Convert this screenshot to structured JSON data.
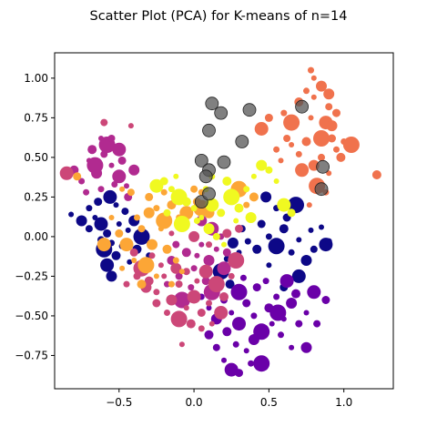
{
  "chart_data": {
    "type": "scatter",
    "title": "Scatter Plot (PCA) for K-means of n=14",
    "xlabel": "",
    "ylabel": "",
    "xlim": [
      -0.93,
      1.33
    ],
    "ylim": [
      -0.96,
      1.16
    ],
    "xticks": [
      -0.5,
      0.0,
      0.5,
      1.0
    ],
    "xtick_labels": [
      "−0.5",
      "0.0",
      "0.5",
      "1.0"
    ],
    "yticks": [
      -0.75,
      -0.5,
      -0.25,
      0.0,
      0.25,
      0.5,
      0.75,
      1.0
    ],
    "ytick_labels": [
      "−0.75",
      "−0.50",
      "−0.25",
      "0.00",
      "0.25",
      "0.50",
      "0.75",
      "1.00"
    ],
    "grid": false,
    "legend": "none",
    "clusters": [
      {
        "color": "#0d0887",
        "points": [
          [
            -0.82,
            0.14
          ],
          [
            -0.75,
            0.1
          ],
          [
            -0.7,
            0.05
          ],
          [
            -0.66,
            0.12
          ],
          [
            -0.62,
            0.08
          ],
          [
            -0.58,
            0.02
          ],
          [
            -0.55,
            -0.04
          ],
          [
            -0.6,
            -0.08
          ],
          [
            -0.52,
            -0.12
          ],
          [
            -0.48,
            -0.06
          ],
          [
            -0.44,
            0.04
          ],
          [
            -0.4,
            0.1
          ],
          [
            -0.46,
            0.16
          ],
          [
            -0.52,
            0.2
          ],
          [
            -0.56,
            0.25
          ],
          [
            -0.64,
            0.22
          ],
          [
            -0.7,
            0.18
          ],
          [
            -0.35,
            0.0
          ],
          [
            -0.38,
            -0.08
          ],
          [
            -0.3,
            -0.12
          ],
          [
            -0.43,
            -0.16
          ],
          [
            -0.55,
            -0.25
          ],
          [
            -0.62,
            -0.02
          ],
          [
            -0.5,
            0.08
          ],
          [
            -0.58,
            -0.18
          ],
          [
            0.45,
            0.08
          ],
          [
            0.5,
            0.0
          ],
          [
            0.55,
            -0.06
          ],
          [
            0.6,
            0.05
          ],
          [
            0.65,
            -0.1
          ],
          [
            0.7,
            -0.02
          ],
          [
            0.75,
            -0.15
          ],
          [
            0.8,
            -0.08
          ],
          [
            0.85,
            0.06
          ],
          [
            0.88,
            -0.05
          ],
          [
            0.62,
            0.12
          ],
          [
            0.55,
            0.18
          ],
          [
            0.68,
            0.2
          ],
          [
            0.42,
            -0.08
          ],
          [
            0.36,
            -0.03
          ],
          [
            0.3,
            -0.1
          ],
          [
            0.26,
            -0.04
          ],
          [
            0.32,
            0.05
          ],
          [
            0.5,
            -0.18
          ],
          [
            0.7,
            -0.25
          ],
          [
            0.6,
            -0.32
          ],
          [
            0.22,
            -0.14
          ],
          [
            0.18,
            -0.22
          ],
          [
            0.24,
            -0.3
          ],
          [
            0.9,
            -0.03
          ],
          [
            0.78,
            0.04
          ],
          [
            0.48,
            0.25
          ]
        ]
      },
      {
        "color": "#6a00a8",
        "points": [
          [
            0.05,
            -0.38
          ],
          [
            0.1,
            -0.45
          ],
          [
            0.15,
            -0.52
          ],
          [
            0.2,
            -0.4
          ],
          [
            0.25,
            -0.48
          ],
          [
            0.3,
            -0.55
          ],
          [
            0.35,
            -0.42
          ],
          [
            0.4,
            -0.5
          ],
          [
            0.45,
            -0.6
          ],
          [
            0.5,
            -0.45
          ],
          [
            0.55,
            -0.38
          ],
          [
            0.6,
            -0.52
          ],
          [
            0.65,
            -0.42
          ],
          [
            0.7,
            -0.55
          ],
          [
            0.75,
            -0.48
          ],
          [
            0.8,
            -0.35
          ],
          [
            0.42,
            -0.32
          ],
          [
            0.48,
            -0.28
          ],
          [
            0.3,
            -0.35
          ],
          [
            0.22,
            -0.6
          ],
          [
            0.28,
            -0.68
          ],
          [
            0.35,
            -0.72
          ],
          [
            0.4,
            -0.65
          ],
          [
            0.15,
            -0.7
          ],
          [
            0.2,
            -0.78
          ],
          [
            0.25,
            -0.84
          ],
          [
            0.3,
            -0.86
          ],
          [
            0.38,
            -0.8
          ],
          [
            0.45,
            -0.8
          ],
          [
            0.1,
            -0.62
          ],
          [
            0.58,
            -0.62
          ],
          [
            0.65,
            -0.7
          ],
          [
            0.75,
            -0.7
          ],
          [
            0.82,
            -0.55
          ],
          [
            0.52,
            -0.55
          ],
          [
            0.62,
            -0.28
          ],
          [
            0.88,
            -0.4
          ],
          [
            0.33,
            -0.26
          ],
          [
            0.56,
            -0.48
          ],
          [
            0.68,
            -0.36
          ]
        ]
      },
      {
        "color": "#b12a90",
        "points": [
          [
            -0.8,
            0.42
          ],
          [
            -0.75,
            0.35
          ],
          [
            -0.7,
            0.48
          ],
          [
            -0.65,
            0.4
          ],
          [
            -0.6,
            0.52
          ],
          [
            -0.55,
            0.45
          ],
          [
            -0.5,
            0.38
          ],
          [
            -0.48,
            0.48
          ],
          [
            -0.62,
            0.3
          ],
          [
            -0.58,
            0.58
          ],
          [
            -0.68,
            0.55
          ],
          [
            -0.72,
            0.28
          ],
          [
            -0.45,
            0.32
          ],
          [
            -0.4,
            0.42
          ],
          [
            -0.55,
            0.62
          ],
          [
            -0.62,
            0.62
          ],
          [
            -0.5,
            0.55
          ],
          [
            -0.44,
            0.25
          ],
          [
            -0.53,
            0.33
          ],
          [
            -0.66,
            0.45
          ],
          [
            -0.05,
            -0.1
          ],
          [
            0.0,
            -0.2
          ],
          [
            0.05,
            -0.05
          ],
          [
            0.1,
            -0.15
          ],
          [
            -0.1,
            -0.25
          ],
          [
            0.15,
            -0.08
          ],
          [
            0.2,
            -0.2
          ],
          [
            0.08,
            -0.28
          ],
          [
            -0.02,
            -0.32
          ],
          [
            0.12,
            -0.35
          ],
          [
            -0.15,
            -0.15
          ],
          [
            0.18,
            0.0
          ],
          [
            -0.08,
            0.05
          ],
          [
            0.05,
            0.1
          ],
          [
            -0.12,
            -0.05
          ],
          [
            0.02,
            -0.12
          ],
          [
            0.12,
            0.05
          ],
          [
            0.22,
            -0.1
          ],
          [
            -0.18,
            -0.3
          ],
          [
            -0.08,
            -0.4
          ]
        ]
      },
      {
        "color": "#cc4778",
        "points": [
          [
            -0.35,
            -0.2
          ],
          [
            -0.3,
            -0.28
          ],
          [
            -0.25,
            -0.35
          ],
          [
            -0.2,
            -0.25
          ],
          [
            -0.15,
            -0.4
          ],
          [
            -0.1,
            -0.3
          ],
          [
            -0.05,
            -0.45
          ],
          [
            0.0,
            -0.38
          ],
          [
            0.05,
            -0.48
          ],
          [
            0.1,
            -0.42
          ],
          [
            0.15,
            -0.3
          ],
          [
            0.2,
            -0.38
          ],
          [
            -0.28,
            -0.12
          ],
          [
            -0.22,
            -0.18
          ],
          [
            -0.12,
            -0.2
          ],
          [
            -0.05,
            -0.22
          ],
          [
            0.02,
            -0.28
          ],
          [
            0.08,
            -0.22
          ],
          [
            -0.25,
            -0.42
          ],
          [
            -0.18,
            -0.48
          ],
          [
            -0.1,
            -0.52
          ],
          [
            -0.02,
            -0.55
          ],
          [
            0.05,
            -0.58
          ],
          [
            0.12,
            -0.55
          ],
          [
            -0.32,
            -0.32
          ],
          [
            -0.38,
            -0.25
          ],
          [
            -0.08,
            -0.68
          ],
          [
            0.18,
            -0.48
          ],
          [
            -0.4,
            -0.1
          ],
          [
            0.25,
            -0.25
          ],
          [
            0.28,
            -0.15
          ],
          [
            0.22,
            0.02
          ],
          [
            0.1,
            -0.05
          ],
          [
            -0.15,
            0.02
          ],
          [
            0.0,
            0.0
          ],
          [
            -0.6,
            0.72
          ],
          [
            -0.42,
            0.7
          ],
          [
            -0.85,
            0.4
          ],
          [
            0.3,
            0.05
          ],
          [
            -0.45,
            -0.3
          ]
        ]
      },
      {
        "color": "#f0724d",
        "points": [
          [
            0.6,
            0.78
          ],
          [
            0.65,
            0.72
          ],
          [
            0.7,
            0.85
          ],
          [
            0.75,
            0.92
          ],
          [
            0.8,
            0.88
          ],
          [
            0.85,
            0.95
          ],
          [
            0.9,
            0.82
          ],
          [
            0.78,
            0.75
          ],
          [
            0.88,
            0.72
          ],
          [
            0.92,
            0.62
          ],
          [
            0.95,
            0.55
          ],
          [
            0.85,
            0.62
          ],
          [
            0.75,
            0.6
          ],
          [
            0.7,
            0.52
          ],
          [
            0.65,
            0.58
          ],
          [
            0.8,
            0.45
          ],
          [
            0.85,
            0.5
          ],
          [
            0.9,
            0.4
          ],
          [
            0.72,
            0.42
          ],
          [
            0.95,
            0.78
          ],
          [
            1.0,
            0.6
          ],
          [
            1.05,
            0.58
          ],
          [
            1.22,
            0.39
          ],
          [
            0.78,
            1.05
          ],
          [
            0.8,
            1.0
          ],
          [
            0.9,
            0.9
          ],
          [
            0.62,
            0.62
          ],
          [
            0.58,
            0.48
          ],
          [
            0.45,
            0.68
          ],
          [
            0.5,
            0.75
          ],
          [
            0.55,
            0.55
          ],
          [
            0.82,
            0.32
          ],
          [
            0.98,
            0.5
          ],
          [
            0.88,
            0.28
          ],
          [
            0.77,
            0.2
          ],
          [
            0.92,
            0.7
          ]
        ]
      },
      {
        "color": "#fca636",
        "points": [
          [
            -0.3,
            0.25
          ],
          [
            -0.25,
            0.18
          ],
          [
            -0.2,
            0.1
          ],
          [
            -0.15,
            0.2
          ],
          [
            -0.1,
            0.12
          ],
          [
            -0.22,
            0.05
          ],
          [
            -0.28,
            -0.05
          ],
          [
            -0.35,
            0.05
          ],
          [
            -0.4,
            -0.15
          ],
          [
            -0.45,
            -0.05
          ],
          [
            -0.5,
            0.02
          ],
          [
            -0.38,
            0.12
          ],
          [
            -0.32,
            -0.18
          ],
          [
            -0.18,
            -0.08
          ],
          [
            -0.12,
            -0.15
          ],
          [
            -0.25,
            -0.25
          ],
          [
            -0.3,
            0.15
          ],
          [
            -0.42,
            0.28
          ],
          [
            -0.48,
            0.3
          ],
          [
            -0.05,
            0.15
          ],
          [
            0.02,
            0.22
          ],
          [
            -0.2,
            0.28
          ],
          [
            0.05,
            0.18
          ],
          [
            -0.35,
            -0.3
          ],
          [
            -0.15,
            -0.3
          ],
          [
            -0.08,
            -0.22
          ],
          [
            0.1,
            0.15
          ],
          [
            0.0,
            0.3
          ],
          [
            -0.55,
            0.12
          ],
          [
            -0.6,
            -0.05
          ],
          [
            -0.78,
            0.38
          ],
          [
            0.05,
            0.28
          ],
          [
            0.3,
            0.3
          ],
          [
            0.4,
            0.25
          ],
          [
            0.35,
            0.2
          ],
          [
            -0.48,
            -0.2
          ]
        ]
      },
      {
        "color": "#f0f921",
        "points": [
          [
            -0.25,
            0.32
          ],
          [
            -0.2,
            0.35
          ],
          [
            -0.15,
            0.3
          ],
          [
            -0.1,
            0.25
          ],
          [
            -0.05,
            0.22
          ],
          [
            0.0,
            0.18
          ],
          [
            0.05,
            0.12
          ],
          [
            0.1,
            0.05
          ],
          [
            0.15,
            0.0
          ],
          [
            0.2,
            -0.05
          ],
          [
            0.12,
            0.2
          ],
          [
            0.18,
            0.15
          ],
          [
            0.08,
            0.3
          ],
          [
            0.25,
            0.25
          ],
          [
            0.3,
            0.18
          ],
          [
            0.35,
            0.3
          ],
          [
            0.4,
            0.38
          ],
          [
            0.45,
            0.45
          ],
          [
            0.5,
            0.42
          ],
          [
            0.55,
            0.35
          ],
          [
            0.6,
            0.2
          ],
          [
            0.65,
            0.15
          ],
          [
            0.02,
            0.1
          ],
          [
            -0.08,
            0.08
          ],
          [
            0.22,
            0.35
          ],
          [
            0.12,
            0.38
          ],
          [
            0.28,
            0.1
          ],
          [
            0.38,
            0.12
          ],
          [
            -0.18,
            0.15
          ],
          [
            -0.12,
            0.38
          ]
        ]
      },
      {
        "color": "#555555",
        "points": [
          [
            0.12,
            0.84
          ],
          [
            0.18,
            0.78
          ],
          [
            0.37,
            0.8
          ],
          [
            0.1,
            0.67
          ],
          [
            0.32,
            0.6
          ],
          [
            0.05,
            0.48
          ],
          [
            0.2,
            0.47
          ],
          [
            0.1,
            0.42
          ],
          [
            0.08,
            0.38
          ],
          [
            0.05,
            0.22
          ],
          [
            0.1,
            0.27
          ],
          [
            0.72,
            0.82
          ],
          [
            0.86,
            0.44
          ],
          [
            0.85,
            0.3
          ]
        ]
      }
    ]
  }
}
